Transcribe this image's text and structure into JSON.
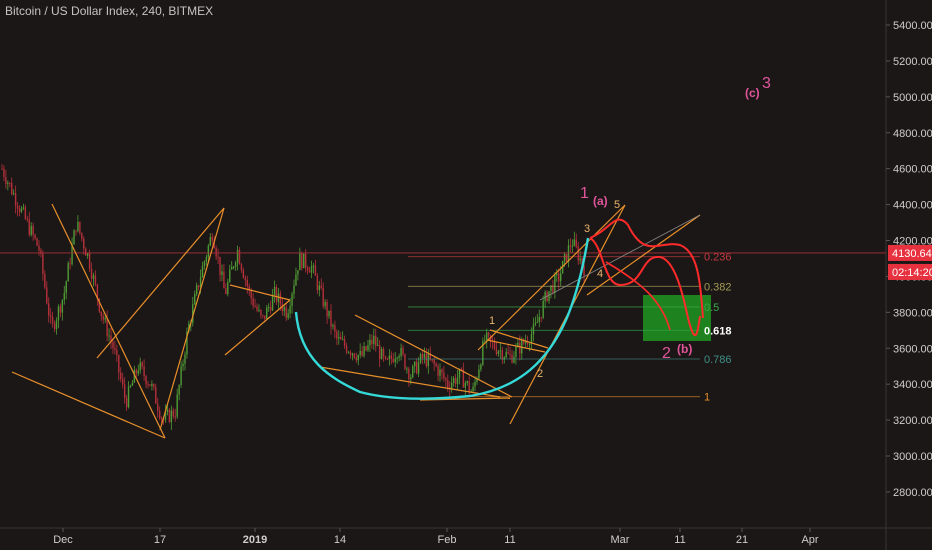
{
  "title": "Bitcoin / US Dollar Index, 240, BITMEX",
  "price_label": "4130.64",
  "time_label": "02:14:20",
  "colors": {
    "background": "#1c1717",
    "candle_up": "#4f9b35",
    "candle_down": "#b5313a",
    "trendline": "#e88f2a",
    "cup_curve": "#34d9d8",
    "projection": "#ff2a2a",
    "wave_label": "#e0559a",
    "price_badge": "#e8313f"
  },
  "chart_data": {
    "type": "candlestick",
    "title": "Bitcoin / US Dollar Index, 240, BITMEX",
    "ylim": [
      2600,
      5500
    ],
    "y_ticks": [
      "5400.00",
      "5200.00",
      "5000.00",
      "4800.00",
      "4600.00",
      "4400.00",
      "4200.00",
      "4000.00",
      "3800.00",
      "3600.00",
      "3400.00",
      "3200.00",
      "3000.00",
      "2800.00"
    ],
    "x_ticks": [
      {
        "label": "Dec",
        "bold": false
      },
      {
        "label": "17",
        "bold": false
      },
      {
        "label": "2019",
        "bold": true
      },
      {
        "label": "14",
        "bold": false
      },
      {
        "label": "Feb",
        "bold": false
      },
      {
        "label": "11",
        "bold": false
      },
      {
        "label": "Mar",
        "bold": false
      },
      {
        "label": "11",
        "bold": false
      },
      {
        "label": "21",
        "bold": false
      },
      {
        "label": "Apr",
        "bold": false
      }
    ],
    "last_price": 4130.64,
    "fib_levels": [
      {
        "label": "0.236",
        "value": 4110
      },
      {
        "label": "0.382",
        "value": 3945
      },
      {
        "label": "0.5",
        "value": 3830
      },
      {
        "label": "0.618",
        "value": 3700
      },
      {
        "label": "0.786",
        "value": 3540
      },
      {
        "label": "1",
        "value": 3330
      }
    ],
    "wave_labels": [
      "1",
      "(a)",
      "5",
      "3",
      "4",
      "1",
      "2",
      "2",
      "(b)",
      "(c)",
      "3"
    ],
    "path": [
      4600,
      4450,
      4300,
      4150,
      3700,
      3900,
      4300,
      4100,
      3800,
      3600,
      3300,
      3500,
      3400,
      3200,
      3250,
      3700,
      4000,
      4250,
      3900,
      4150,
      3900,
      3750,
      3900,
      3800,
      4100,
      4050,
      3850,
      3650,
      3600,
      3550,
      3650,
      3500,
      3600,
      3450,
      3550,
      3500,
      3400,
      3450,
      3350,
      3650,
      3600,
      3550,
      3620,
      3700,
      3900,
      4000,
      4200,
      4050
    ]
  }
}
